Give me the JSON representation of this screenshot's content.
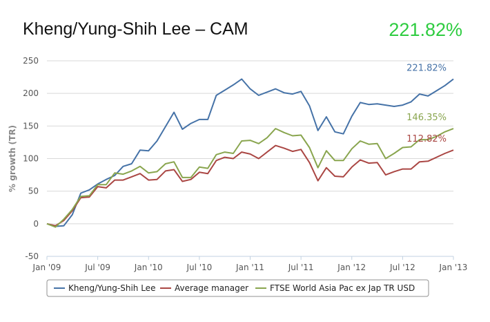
{
  "title": "Kheng/Yung-Shih Lee – CAM",
  "headline_value": "221.82%",
  "headline_color": "#2ecc40",
  "chart_data": {
    "type": "line",
    "ylabel": "% growth (TR)",
    "xlabel": "",
    "ylim": [
      -50,
      250
    ],
    "yticks": [
      -50,
      0,
      50,
      100,
      150,
      200,
      250
    ],
    "xticks": [
      {
        "label": "Jan '09",
        "x": 0
      },
      {
        "label": "Jul '09",
        "x": 6
      },
      {
        "label": "Jan '10",
        "x": 12
      },
      {
        "label": "Jul '10",
        "x": 18
      },
      {
        "label": "Jan '11",
        "x": 24
      },
      {
        "label": "Jul '11",
        "x": 30
      },
      {
        "label": "Jan '12",
        "x": 36
      },
      {
        "label": "Jul '12",
        "x": 42
      },
      {
        "label": "Jan '13",
        "x": 48
      }
    ],
    "xlim": [
      0,
      48
    ],
    "grid": true,
    "legend_position": "bottom",
    "series": [
      {
        "name": "Kheng/Yung-Shih Lee",
        "color": "#4572a7",
        "end_label": "221.82%",
        "values": [
          0,
          -4,
          -3,
          14,
          47,
          52,
          61,
          68,
          74,
          88,
          92,
          113,
          112,
          127,
          149,
          171,
          145,
          154,
          160,
          160,
          197,
          205,
          213,
          222,
          207,
          197,
          202,
          207,
          201,
          199,
          203,
          181,
          143,
          164,
          141,
          138,
          165,
          186,
          183,
          184,
          182,
          180,
          182,
          187,
          199,
          196,
          204,
          212,
          222
        ]
      },
      {
        "name": "Average manager",
        "color": "#aa4643",
        "end_label": "112.82%",
        "values": [
          0,
          -3,
          5,
          20,
          40,
          41,
          57,
          55,
          67,
          67,
          72,
          77,
          67,
          68,
          81,
          83,
          65,
          68,
          79,
          77,
          97,
          102,
          100,
          110,
          107,
          100,
          110,
          120,
          116,
          111,
          114,
          94,
          66,
          86,
          73,
          72,
          87,
          98,
          93,
          94,
          75,
          80,
          84,
          84,
          95,
          96,
          102,
          108,
          113
        ]
      },
      {
        "name": "FTSE World Asia Pac ex Jap TR USD",
        "color": "#89a54e",
        "end_label": "146.35%",
        "values": [
          0,
          -5,
          7,
          22,
          42,
          43,
          60,
          60,
          78,
          76,
          81,
          88,
          78,
          80,
          92,
          95,
          71,
          71,
          87,
          85,
          106,
          110,
          108,
          127,
          128,
          123,
          132,
          146,
          140,
          135,
          136,
          117,
          86,
          112,
          97,
          97,
          115,
          127,
          122,
          123,
          100,
          108,
          117,
          118,
          129,
          129,
          134,
          141,
          146
        ]
      }
    ]
  }
}
